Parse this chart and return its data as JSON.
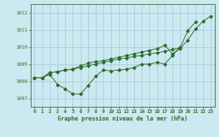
{
  "title": "Graphe pression niveau de la mer (hPa)",
  "background_color": "#cce8f0",
  "grid_color": "#a8cdd8",
  "line_color": "#2d6e2d",
  "xlim": [
    -0.5,
    23.5
  ],
  "ylim": [
    1006.5,
    1012.5
  ],
  "yticks": [
    1007,
    1008,
    1009,
    1010,
    1011,
    1012
  ],
  "xticks": [
    0,
    1,
    2,
    3,
    4,
    5,
    6,
    7,
    8,
    9,
    10,
    11,
    12,
    13,
    14,
    15,
    16,
    17,
    18,
    19,
    20,
    21,
    22,
    23
  ],
  "series": [
    [
      1008.2,
      1008.2,
      1008.4,
      1007.8,
      1007.55,
      1007.25,
      1007.25,
      1007.75,
      1008.3,
      1008.65,
      1008.6,
      1008.65,
      1008.7,
      1008.8,
      1009.0,
      1009.0,
      1009.1,
      1009.0,
      1009.5,
      1010.0,
      null,
      null,
      null,
      null
    ],
    [
      1008.2,
      1008.2,
      1008.5,
      1008.55,
      1008.65,
      1008.7,
      1008.8,
      1008.9,
      1009.0,
      1009.1,
      1009.2,
      1009.3,
      1009.35,
      1009.45,
      1009.5,
      1009.6,
      1009.65,
      1009.75,
      1009.85,
      1009.95,
      1010.95,
      1011.45,
      null,
      null
    ],
    [
      1008.2,
      1008.2,
      1008.5,
      1008.55,
      1008.65,
      1008.7,
      1008.9,
      1009.05,
      1009.15,
      1009.2,
      1009.3,
      1009.4,
      1009.5,
      1009.6,
      1009.7,
      1009.8,
      1009.9,
      1010.1,
      1009.6,
      1009.9,
      1010.4,
      1011.05,
      1011.5,
      1011.8
    ]
  ]
}
